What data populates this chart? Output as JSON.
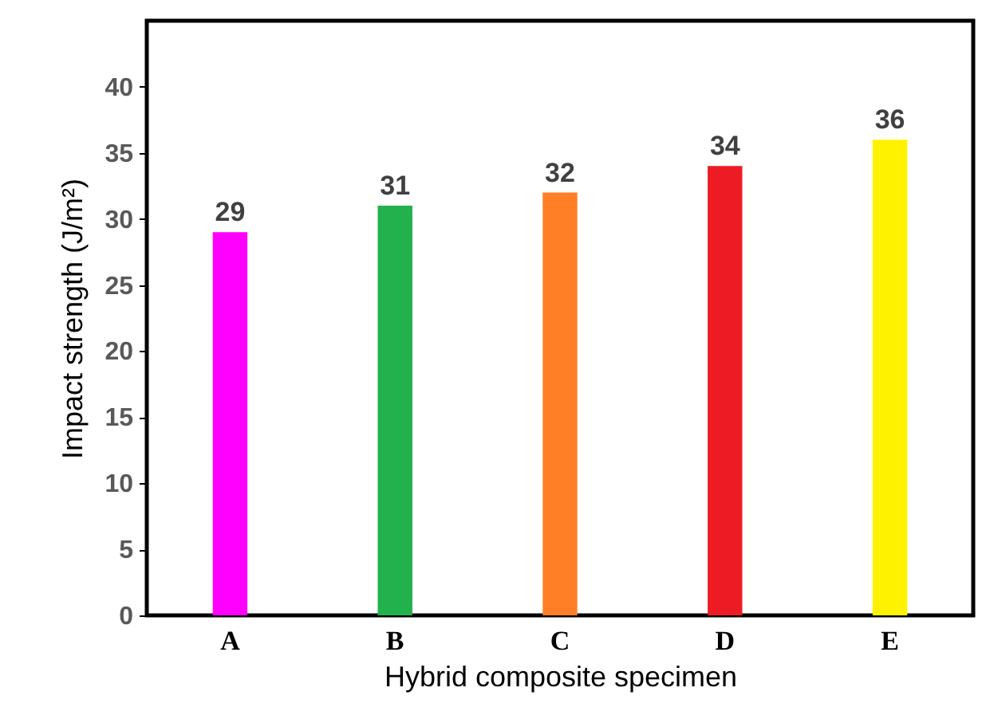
{
  "chart_data": {
    "type": "bar",
    "xlabel": "Hybrid composite specimen",
    "ylabel": "Impact strength (J/m²)",
    "categories": [
      "A",
      "B",
      "C",
      "D",
      "E"
    ],
    "values": [
      29,
      31,
      32,
      34,
      36
    ],
    "colors": [
      "#ff00ff",
      "#22b14c",
      "#ff7f27",
      "#ed1c24",
      "#fff200"
    ],
    "ylim": [
      0,
      45
    ],
    "yticks": [
      0,
      5,
      10,
      15,
      20,
      25,
      30,
      35,
      40
    ],
    "grid": false,
    "data_labels": true
  }
}
